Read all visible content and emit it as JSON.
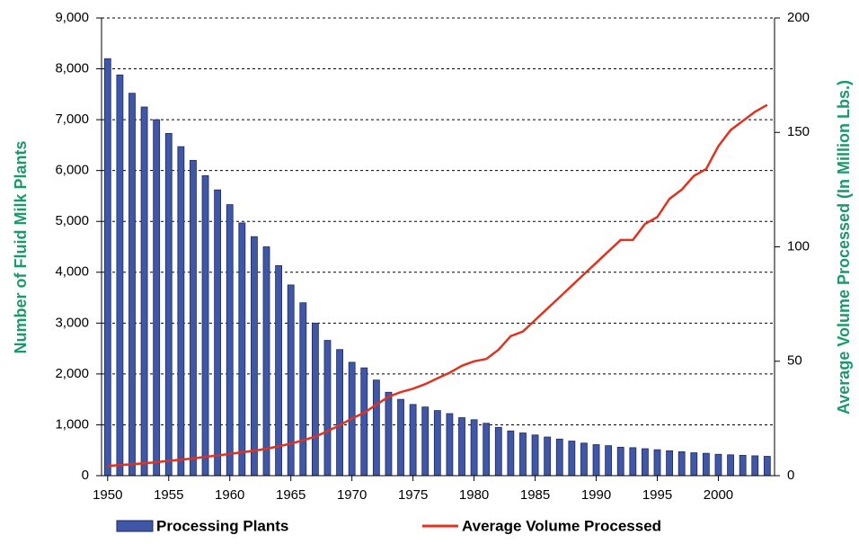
{
  "chart_data": {
    "type": "bar-line",
    "y_label": "Number of Fluid Milk Plants",
    "y2_label": "Average Volume Processed (In Million Lbs.)",
    "x": [
      1950,
      1951,
      1952,
      1953,
      1954,
      1955,
      1956,
      1957,
      1958,
      1959,
      1960,
      1961,
      1962,
      1963,
      1964,
      1965,
      1966,
      1967,
      1968,
      1969,
      1970,
      1971,
      1972,
      1973,
      1974,
      1975,
      1976,
      1977,
      1978,
      1979,
      1980,
      1981,
      1982,
      1983,
      1984,
      1985,
      1986,
      1987,
      1988,
      1989,
      1990,
      1991,
      1992,
      1993,
      1994,
      1995,
      1996,
      1997,
      1998,
      1999,
      2000,
      2001,
      2002,
      2003,
      2004
    ],
    "xlim": [
      1949.5,
      2004.6
    ],
    "xticks": [
      1950,
      1955,
      1960,
      1965,
      1970,
      1975,
      1980,
      1985,
      1990,
      1995,
      2000
    ],
    "ylim": [
      0,
      9000
    ],
    "yticks": [
      0,
      {
        "value": 1000,
        "label": "1,000"
      },
      {
        "value": 2000,
        "label": "2,000"
      },
      {
        "value": 3000,
        "label": "3,000"
      },
      {
        "value": 4000,
        "label": "4,000"
      },
      {
        "value": 5000,
        "label": "5,000"
      },
      {
        "value": 6000,
        "label": "6,000"
      },
      {
        "value": 7000,
        "label": "7,000"
      },
      {
        "value": 8000,
        "label": "8,000"
      },
      {
        "value": 9000,
        "label": "9,000"
      }
    ],
    "y2lim": [
      0,
      200
    ],
    "y2ticks": [
      0,
      50,
      100,
      150,
      200
    ],
    "grid": true,
    "series": [
      {
        "name": "Processing Plants",
        "type": "bar",
        "color": "#3f57a6",
        "values": [
          8200,
          7880,
          7520,
          7250,
          7000,
          6730,
          6470,
          6200,
          5900,
          5620,
          5330,
          4970,
          4700,
          4500,
          4130,
          3750,
          3400,
          3000,
          2660,
          2480,
          2230,
          2120,
          1880,
          1640,
          1500,
          1400,
          1350,
          1280,
          1220,
          1140,
          1100,
          1030,
          950,
          880,
          840,
          800,
          760,
          720,
          680,
          640,
          610,
          590,
          560,
          550,
          530,
          510,
          490,
          470,
          450,
          440,
          420,
          410,
          400,
          390,
          380
        ]
      },
      {
        "name": "Average Volume Processed",
        "type": "line",
        "axis": "y2",
        "color": "#e0321f",
        "values": [
          4.3,
          4.6,
          5,
          5.4,
          5.9,
          6.5,
          7,
          7.6,
          8.2,
          8.8,
          9.5,
          10.2,
          10.9,
          11.8,
          12.8,
          14,
          15.5,
          17,
          19.5,
          22,
          25,
          27.5,
          31,
          34.5,
          36.5,
          38,
          40,
          42.5,
          45,
          48,
          50,
          51,
          55,
          61,
          63,
          68,
          73,
          78,
          83,
          88,
          93,
          98,
          103,
          103,
          110,
          113,
          121,
          125,
          131,
          134,
          144,
          151,
          155,
          159,
          162
        ]
      }
    ]
  }
}
